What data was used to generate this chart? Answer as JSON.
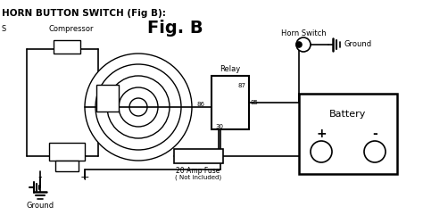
{
  "title": "HORN BUTTON SWITCH (Fig B):",
  "fig_label": "Fig. B",
  "bg_color": "#ffffff",
  "line_color": "#000000",
  "text_color": "#000000",
  "labels": {
    "compressor": "Compressor",
    "relay": "Relay",
    "relay_pins": [
      "87",
      "85",
      "30"
    ],
    "horn_switch": "Horn Switch",
    "ground_top": "Ground",
    "ground_bottom": "Ground",
    "battery": "Battery",
    "battery_plus": "+",
    "battery_minus": "-",
    "horn_plus": "+",
    "horn_minus": "-",
    "fuse": "20 Amp Fuse",
    "fuse_note": "( Not included)"
  },
  "figsize": [
    4.74,
    2.41
  ],
  "dpi": 100
}
